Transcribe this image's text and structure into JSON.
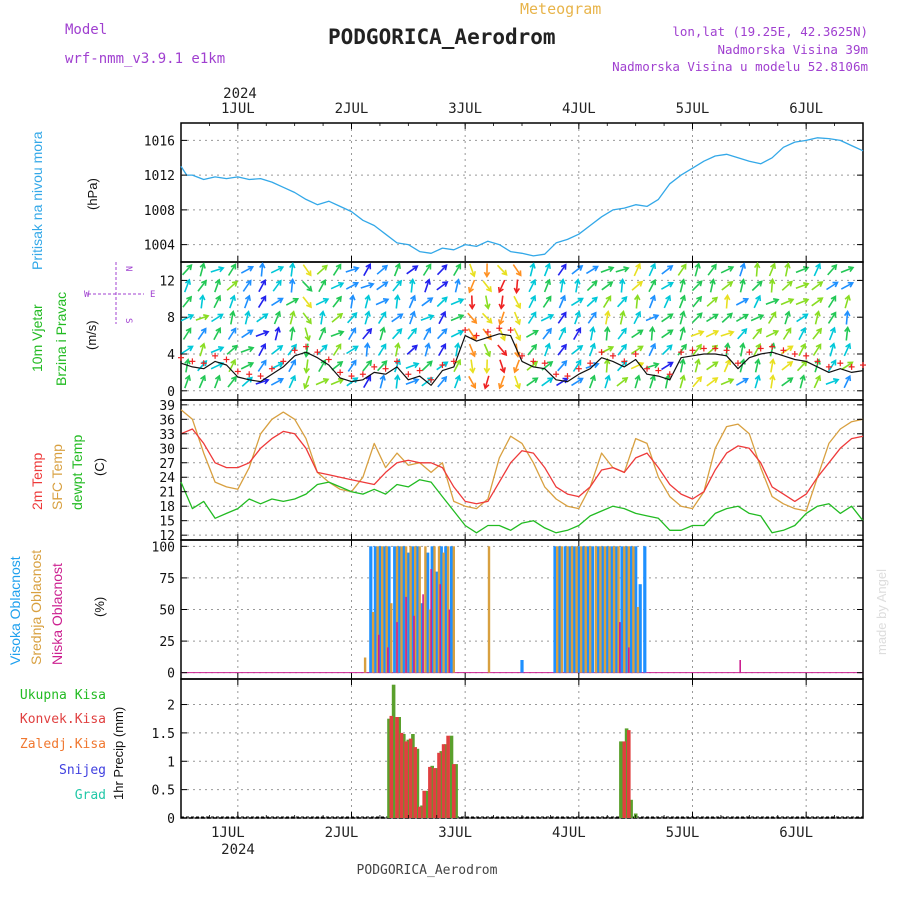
{
  "header": {
    "model_label": "Model",
    "model_name": "wrf-nmm_v3.9.1  e1km",
    "meteogram_label": "Meteogram",
    "station": "PODGORICA_Aerodrom",
    "coords": "lon,lat (19.25E, 42.3625N)",
    "altitude": "Nadmorska Visina 39m",
    "model_altitude": "Nadmorska Visina u modelu 52.8106m",
    "year": "2024",
    "footer_station": "PODGORICA_Aerodrom",
    "watermark": "made by Angel"
  },
  "colors": {
    "pressure": "#33a8e8",
    "temp2m": "#ee3a3a",
    "sfc": "#d8a040",
    "dew": "#22bb22",
    "high_cloud": "#1e90ff",
    "mid_cloud": "#d8a040",
    "low_cloud": "#cc2090",
    "total_precip": "#5aa02c",
    "conv_precip": "#e04040",
    "purple_text": "#a040d0"
  },
  "chart_data": [
    {
      "type": "line",
      "panel": "pressure",
      "x_ticks": [
        "1JUL",
        "2JUL",
        "3JUL",
        "4JUL",
        "5JUL",
        "6JUL"
      ],
      "ylabel_name": "Pritisak na nivou mora",
      "ylabel_unit": "(hPa)",
      "yticks": [
        "1004",
        "1008",
        "1012",
        "1016"
      ],
      "ylim": [
        1002,
        1018
      ],
      "xlim": [
        0.5,
        6.5
      ],
      "series": [
        {
          "name": "Pritisak na nivou mora",
          "x": [
            0.5,
            0.55,
            0.6,
            0.7,
            0.8,
            0.9,
            1.0,
            1.1,
            1.2,
            1.3,
            1.4,
            1.5,
            1.6,
            1.7,
            1.8,
            1.9,
            2.0,
            2.1,
            2.2,
            2.3,
            2.4,
            2.5,
            2.6,
            2.7,
            2.8,
            2.9,
            3.0,
            3.1,
            3.2,
            3.3,
            3.4,
            3.5,
            3.6,
            3.7,
            3.8,
            3.9,
            4.0,
            4.1,
            4.2,
            4.3,
            4.4,
            4.5,
            4.6,
            4.7,
            4.8,
            4.9,
            5.0,
            5.1,
            5.2,
            5.3,
            5.4,
            5.5,
            5.6,
            5.7,
            5.8,
            5.9,
            6.0,
            6.1,
            6.2,
            6.3,
            6.4,
            6.5
          ],
          "y": [
            1013,
            1012,
            1012,
            1011.5,
            1011.8,
            1011.6,
            1011.8,
            1011.5,
            1011.6,
            1011.2,
            1010.6,
            1010,
            1009.2,
            1008.6,
            1009.0,
            1008.4,
            1007.8,
            1006.8,
            1006.2,
            1005.2,
            1004.2,
            1004.0,
            1003.2,
            1003.0,
            1003.6,
            1003.4,
            1004.0,
            1003.8,
            1004.4,
            1004.0,
            1003.2,
            1003.0,
            1002.7,
            1002.9,
            1004.2,
            1004.6,
            1005.2,
            1006.2,
            1007.2,
            1008.0,
            1008.2,
            1008.6,
            1008.4,
            1009.2,
            1011.0,
            1012.0,
            1012.8,
            1013.6,
            1014.2,
            1014.4,
            1014.0,
            1013.6,
            1013.3,
            1014.0,
            1015.2,
            1015.8,
            1016.0,
            1016.3,
            1016.2,
            1016.0,
            1015.4,
            1014.8
          ]
        }
      ]
    },
    {
      "type": "line",
      "panel": "wind",
      "ylabel_name1": "10m Vjetar",
      "ylabel_name2": "Brzina i Pravac",
      "ylabel_unit": "(m/s)",
      "compass_n": "N",
      "compass_s": "S",
      "compass_e": "E",
      "compass_w": "W",
      "yticks": [
        "0",
        "4",
        "8",
        "12"
      ],
      "ylim": [
        -1,
        14
      ],
      "xlim": [
        0.5,
        6.5
      ],
      "series": [
        {
          "name": "Brzina vjetra",
          "x": [
            0.5,
            0.6,
            0.7,
            0.8,
            0.9,
            1.0,
            1.1,
            1.2,
            1.3,
            1.4,
            1.5,
            1.6,
            1.7,
            1.8,
            1.9,
            2.0,
            2.1,
            2.2,
            2.3,
            2.4,
            2.5,
            2.6,
            2.7,
            2.8,
            2.9,
            3.0,
            3.1,
            3.2,
            3.3,
            3.4,
            3.5,
            3.6,
            3.7,
            3.8,
            3.9,
            4.0,
            4.1,
            4.2,
            4.3,
            4.4,
            4.5,
            4.6,
            4.7,
            4.8,
            4.9,
            5.0,
            5.1,
            5.2,
            5.3,
            5.4,
            5.5,
            5.6,
            5.7,
            5.8,
            5.9,
            6.0,
            6.1,
            6.2,
            6.3,
            6.4,
            6.5
          ],
          "y": [
            3.0,
            2.6,
            2.4,
            3.2,
            2.8,
            1.5,
            1.2,
            1.0,
            1.8,
            2.6,
            3.8,
            4.2,
            3.6,
            2.8,
            1.4,
            1.0,
            1.2,
            2.0,
            1.8,
            2.6,
            1.2,
            1.6,
            0.6,
            2.2,
            2.6,
            6.0,
            5.4,
            5.8,
            6.2,
            6.0,
            3.2,
            2.6,
            2.4,
            1.2,
            1.0,
            1.8,
            2.4,
            3.6,
            3.2,
            2.6,
            3.4,
            1.8,
            1.6,
            1.2,
            3.6,
            3.8,
            4.0,
            4.0,
            3.8,
            2.4,
            3.6,
            4.0,
            4.2,
            3.8,
            3.4,
            3.2,
            2.6,
            2.0,
            2.4,
            2.0,
            2.2
          ]
        }
      ]
    },
    {
      "type": "line",
      "panel": "temperature",
      "ylabel_name1": "2m Temp",
      "ylabel_name2": "SFC Temp",
      "ylabel_name3": "dewpt Temp",
      "ylabel_unit": "(C)",
      "yticks": [
        "12",
        "15",
        "18",
        "21",
        "24",
        "27",
        "30",
        "33",
        "36",
        "39"
      ],
      "ylim": [
        11,
        40
      ],
      "xlim": [
        0.5,
        6.5
      ],
      "series": [
        {
          "name": "2m Temp",
          "x": [
            0.5,
            0.6,
            0.7,
            0.8,
            0.9,
            1.0,
            1.1,
            1.2,
            1.3,
            1.4,
            1.5,
            1.6,
            1.7,
            1.8,
            1.9,
            2.0,
            2.1,
            2.2,
            2.3,
            2.4,
            2.5,
            2.6,
            2.7,
            2.8,
            2.9,
            3.0,
            3.1,
            3.2,
            3.3,
            3.4,
            3.5,
            3.6,
            3.7,
            3.8,
            3.9,
            4.0,
            4.1,
            4.2,
            4.3,
            4.4,
            4.5,
            4.6,
            4.7,
            4.8,
            4.9,
            5.0,
            5.1,
            5.2,
            5.3,
            5.4,
            5.5,
            5.6,
            5.7,
            5.8,
            5.9,
            6.0,
            6.1,
            6.2,
            6.3,
            6.4,
            6.5
          ],
          "y": [
            33,
            34,
            31,
            27,
            26,
            26,
            27,
            30,
            32,
            33.5,
            33,
            30,
            25,
            24.5,
            24,
            23.5,
            23,
            22.5,
            25,
            27,
            27.5,
            27,
            27,
            26,
            22,
            19,
            18.5,
            19,
            23,
            27,
            29.5,
            29,
            26,
            22,
            20.5,
            20,
            22,
            25.5,
            26,
            25,
            28,
            29,
            26,
            22.5,
            20.5,
            19.5,
            21,
            25.5,
            29,
            30.5,
            30,
            27,
            22,
            20.5,
            19,
            20.5,
            24,
            27,
            30,
            32,
            32.5
          ]
        },
        {
          "name": "SFC Temp",
          "x": [
            0.5,
            0.6,
            0.7,
            0.8,
            0.9,
            1.0,
            1.1,
            1.2,
            1.3,
            1.4,
            1.5,
            1.6,
            1.7,
            1.8,
            1.9,
            2.0,
            2.1,
            2.2,
            2.3,
            2.4,
            2.5,
            2.6,
            2.7,
            2.8,
            2.9,
            3.0,
            3.1,
            3.2,
            3.3,
            3.4,
            3.5,
            3.6,
            3.7,
            3.8,
            3.9,
            4.0,
            4.1,
            4.2,
            4.3,
            4.4,
            4.5,
            4.6,
            4.7,
            4.8,
            4.9,
            5.0,
            5.1,
            5.2,
            5.3,
            5.4,
            5.5,
            5.6,
            5.7,
            5.8,
            5.9,
            6.0,
            6.1,
            6.2,
            6.3,
            6.4,
            6.5
          ],
          "y": [
            38,
            36,
            29,
            23,
            22,
            21.5,
            26,
            33,
            36,
            37.5,
            36,
            32,
            25,
            23,
            21.5,
            21,
            24,
            31,
            26,
            29,
            26.5,
            27,
            25,
            27,
            19,
            18,
            17.5,
            19.5,
            28,
            32.5,
            31,
            27,
            22,
            19.5,
            18,
            17.5,
            22,
            29,
            26,
            25,
            32,
            31,
            24,
            20,
            18,
            17.5,
            21,
            30,
            34.5,
            35,
            33,
            26,
            20,
            18.5,
            17.5,
            17,
            24,
            31,
            34,
            35.5,
            36
          ]
        },
        {
          "name": "dewpt Temp",
          "x": [
            0.5,
            0.6,
            0.7,
            0.8,
            0.9,
            1.0,
            1.1,
            1.2,
            1.3,
            1.4,
            1.5,
            1.6,
            1.7,
            1.8,
            1.9,
            2.0,
            2.1,
            2.2,
            2.3,
            2.4,
            2.5,
            2.6,
            2.7,
            2.8,
            2.9,
            3.0,
            3.1,
            3.2,
            3.3,
            3.4,
            3.5,
            3.6,
            3.7,
            3.8,
            3.9,
            4.0,
            4.1,
            4.2,
            4.3,
            4.4,
            4.5,
            4.6,
            4.7,
            4.8,
            4.9,
            5.0,
            5.1,
            5.2,
            5.3,
            5.4,
            5.5,
            5.6,
            5.7,
            5.8,
            5.9,
            6.0,
            6.1,
            6.2,
            6.3,
            6.4,
            6.5
          ],
          "y": [
            23,
            17.5,
            19,
            15.5,
            16.5,
            17.5,
            19.5,
            18.5,
            19.5,
            19,
            19.5,
            20.5,
            22.5,
            23,
            22,
            21,
            20.5,
            21.5,
            20.5,
            22.5,
            22,
            23.5,
            23,
            20,
            17,
            14,
            12.5,
            14,
            14,
            13,
            14.5,
            15,
            13.5,
            12.5,
            13,
            14,
            16,
            17,
            18,
            17.5,
            16.5,
            16,
            15.5,
            13,
            13,
            14,
            14,
            16.5,
            17.5,
            18,
            16.5,
            16,
            12.5,
            13,
            14,
            16.5,
            18,
            18.5,
            16.5,
            18,
            15
          ]
        }
      ]
    },
    {
      "type": "bar",
      "panel": "cloud",
      "ylabel_name1": "Visoka Oblacnost",
      "ylabel_name2": "Srednja Oblacnost",
      "ylabel_name3": "Niska Oblacnost",
      "ylabel_unit": "(%)",
      "yticks": [
        "0",
        "25",
        "50",
        "75",
        "100"
      ],
      "ylim": [
        -5,
        105
      ],
      "xlim": [
        0.5,
        6.5
      ],
      "series": [
        {
          "name": "Visoka Oblacnost",
          "x": [
            2.17,
            2.21,
            2.25,
            2.29,
            2.33,
            2.38,
            2.42,
            2.46,
            2.5,
            2.54,
            2.58,
            2.62,
            2.67,
            2.71,
            2.75,
            2.79,
            2.83,
            2.88,
            3.5,
            3.79,
            3.83,
            3.88,
            3.92,
            3.96,
            4.0,
            4.04,
            4.08,
            4.12,
            4.17,
            4.21,
            4.25,
            4.29,
            4.33,
            4.38,
            4.42,
            4.46,
            4.5,
            4.54,
            4.58
          ],
          "y": [
            100,
            100,
            100,
            100,
            100,
            100,
            100,
            100,
            95,
            100,
            100,
            55,
            95,
            100,
            80,
            100,
            100,
            100,
            10,
            100,
            100,
            100,
            100,
            100,
            100,
            100,
            100,
            100,
            100,
            100,
            100,
            100,
            100,
            100,
            100,
            100,
            100,
            70,
            100
          ]
        },
        {
          "name": "Srednja Oblacnost",
          "x": [
            2.12,
            2.19,
            2.23,
            2.27,
            2.31,
            2.35,
            2.4,
            2.44,
            2.48,
            2.52,
            2.56,
            2.6,
            2.65,
            2.69,
            2.73,
            2.77,
            2.81,
            2.85,
            2.9,
            3.21,
            3.81,
            3.85,
            3.9,
            3.94,
            3.98,
            4.02,
            4.06,
            4.1,
            4.15,
            4.19,
            4.23,
            4.27,
            4.31,
            4.35,
            4.4,
            4.44,
            4.48,
            4.52
          ],
          "y": [
            12,
            48,
            100,
            100,
            100,
            55,
            100,
            100,
            100,
            100,
            100,
            100,
            100,
            50,
            100,
            100,
            95,
            100,
            100,
            100,
            100,
            100,
            100,
            100,
            100,
            100,
            100,
            100,
            100,
            100,
            100,
            100,
            100,
            100,
            100,
            100,
            100,
            52
          ]
        },
        {
          "name": "Niska Oblacnost",
          "x": [
            2.24,
            2.32,
            2.4,
            2.48,
            2.55,
            2.63,
            2.7,
            2.78,
            2.86,
            4.36,
            4.44,
            5.42
          ],
          "y": [
            30,
            20,
            40,
            60,
            45,
            62,
            82,
            70,
            50,
            40,
            20,
            10
          ]
        }
      ]
    },
    {
      "type": "bar",
      "panel": "precipitation",
      "legend": [
        "Ukupna Kisa",
        "Konvek.Kisa",
        "Zaledj.Kisa",
        "Snijeg",
        "Grad"
      ],
      "ylabel": "1hr Precip (mm)",
      "yticks": [
        "0",
        "0.5",
        "1",
        "1.5",
        "2"
      ],
      "ylim": [
        0,
        2.45
      ],
      "xlim": [
        0.5,
        6.5
      ],
      "x_ticks": [
        "1JUL",
        "2JUL",
        "3JUL",
        "4JUL",
        "5JUL",
        "6JUL"
      ],
      "series": [
        {
          "name": "Ukupna Kisa",
          "x": [
            2.33,
            2.37,
            2.42,
            2.46,
            2.5,
            2.54,
            2.58,
            2.62,
            2.67,
            2.71,
            2.75,
            2.79,
            2.83,
            2.88,
            2.92,
            4.37,
            4.42,
            4.46,
            4.5
          ],
          "y": [
            1.75,
            2.35,
            1.78,
            1.48,
            1.38,
            1.48,
            1.22,
            0.22,
            0.48,
            0.92,
            0.88,
            1.18,
            1.3,
            1.45,
            0.95,
            1.35,
            1.58,
            0.32,
            0.08
          ]
        },
        {
          "name": "Konvek.Kisa",
          "x": [
            2.35,
            2.4,
            2.44,
            2.48,
            2.52,
            2.56,
            2.6,
            2.64,
            2.69,
            2.73,
            2.77,
            2.81,
            2.85,
            2.9,
            4.4,
            4.44
          ],
          "y": [
            1.8,
            1.78,
            1.5,
            1.35,
            1.4,
            1.25,
            0.2,
            0.48,
            0.9,
            0.88,
            1.15,
            1.3,
            1.45,
            0.95,
            1.35,
            1.55
          ]
        }
      ]
    }
  ]
}
